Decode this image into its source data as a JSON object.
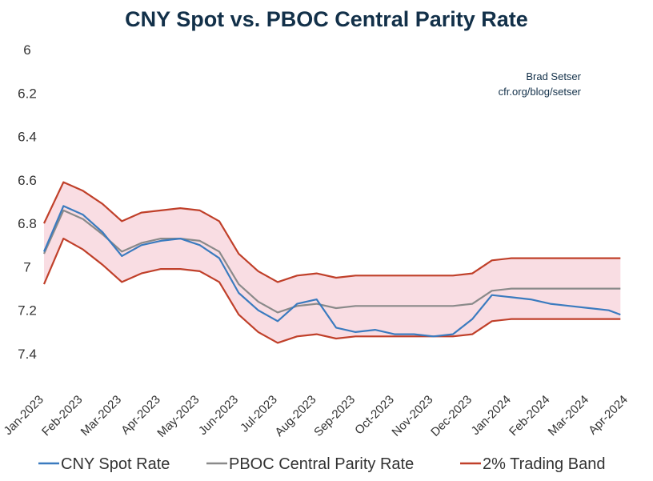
{
  "chart_data": {
    "type": "line",
    "title": "CNY Spot vs. PBOC Central Parity Rate",
    "credit": [
      "Brad Setser",
      "cfr.org/blog/setser"
    ],
    "y_inverted": true,
    "ylim": [
      6.0,
      7.4
    ],
    "yticks": [
      6,
      6.2,
      6.4,
      6.6,
      6.8,
      7,
      7.2,
      7.4
    ],
    "xticks": [
      "Jan-2023",
      "Feb-2023",
      "Mar-2023",
      "Apr-2023",
      "May-2023",
      "Jun-2023",
      "Jul-2023",
      "Aug-2023",
      "Sep-2023",
      "Oct-2023",
      "Nov-2023",
      "Dec-2023",
      "Jan-2024",
      "Feb-2024",
      "Mar-2024",
      "Apr-2024"
    ],
    "x": [
      0,
      0.5,
      1,
      1.5,
      2,
      2.5,
      3,
      3.5,
      4,
      4.5,
      5,
      5.5,
      6,
      6.5,
      7,
      7.5,
      8,
      8.5,
      9,
      9.5,
      10,
      10.5,
      11,
      11.5,
      12,
      12.5,
      13,
      13.5,
      14,
      14.5,
      14.8
    ],
    "series": [
      {
        "name": "CNY Spot Rate",
        "color": "#3b7bbf",
        "values": [
          6.93,
          6.72,
          6.76,
          6.84,
          6.95,
          6.9,
          6.88,
          6.87,
          6.9,
          6.96,
          7.12,
          7.2,
          7.25,
          7.17,
          7.15,
          7.28,
          7.3,
          7.29,
          7.31,
          7.31,
          7.32,
          7.31,
          7.24,
          7.13,
          7.14,
          7.15,
          7.17,
          7.18,
          7.19,
          7.2,
          7.22
        ]
      },
      {
        "name": "PBOC Central Parity Rate",
        "color": "#8a8a8a",
        "values": [
          6.94,
          6.74,
          6.78,
          6.85,
          6.93,
          6.89,
          6.87,
          6.87,
          6.88,
          6.93,
          7.08,
          7.16,
          7.21,
          7.18,
          7.17,
          7.19,
          7.18,
          7.18,
          7.18,
          7.18,
          7.18,
          7.18,
          7.17,
          7.11,
          7.1,
          7.1,
          7.1,
          7.1,
          7.1,
          7.1,
          7.1
        ]
      },
      {
        "name": "2% Trading Band",
        "color": "#c0402a",
        "role": "upper",
        "values": [
          6.8,
          6.61,
          6.65,
          6.71,
          6.79,
          6.75,
          6.74,
          6.73,
          6.74,
          6.79,
          6.94,
          7.02,
          7.07,
          7.04,
          7.03,
          7.05,
          7.04,
          7.04,
          7.04,
          7.04,
          7.04,
          7.04,
          7.03,
          6.97,
          6.96,
          6.96,
          6.96,
          6.96,
          6.96,
          6.96,
          6.96
        ]
      },
      {
        "name": "2% Trading Band",
        "color": "#c0402a",
        "role": "lower",
        "values": [
          7.08,
          6.87,
          6.92,
          6.99,
          7.07,
          7.03,
          7.01,
          7.01,
          7.02,
          7.07,
          7.22,
          7.3,
          7.35,
          7.32,
          7.31,
          7.33,
          7.32,
          7.32,
          7.32,
          7.32,
          7.32,
          7.32,
          7.31,
          7.25,
          7.24,
          7.24,
          7.24,
          7.24,
          7.24,
          7.24,
          7.24
        ]
      }
    ],
    "band_fill": "#f9dde3",
    "legend": {
      "position": "bottom",
      "entries": [
        {
          "label": "CNY Spot Rate",
          "color": "#3b7bbf"
        },
        {
          "label": "PBOC Central Parity Rate",
          "color": "#8a8a8a"
        },
        {
          "label": "2% Trading Band",
          "color": "#c0402a"
        }
      ]
    }
  }
}
